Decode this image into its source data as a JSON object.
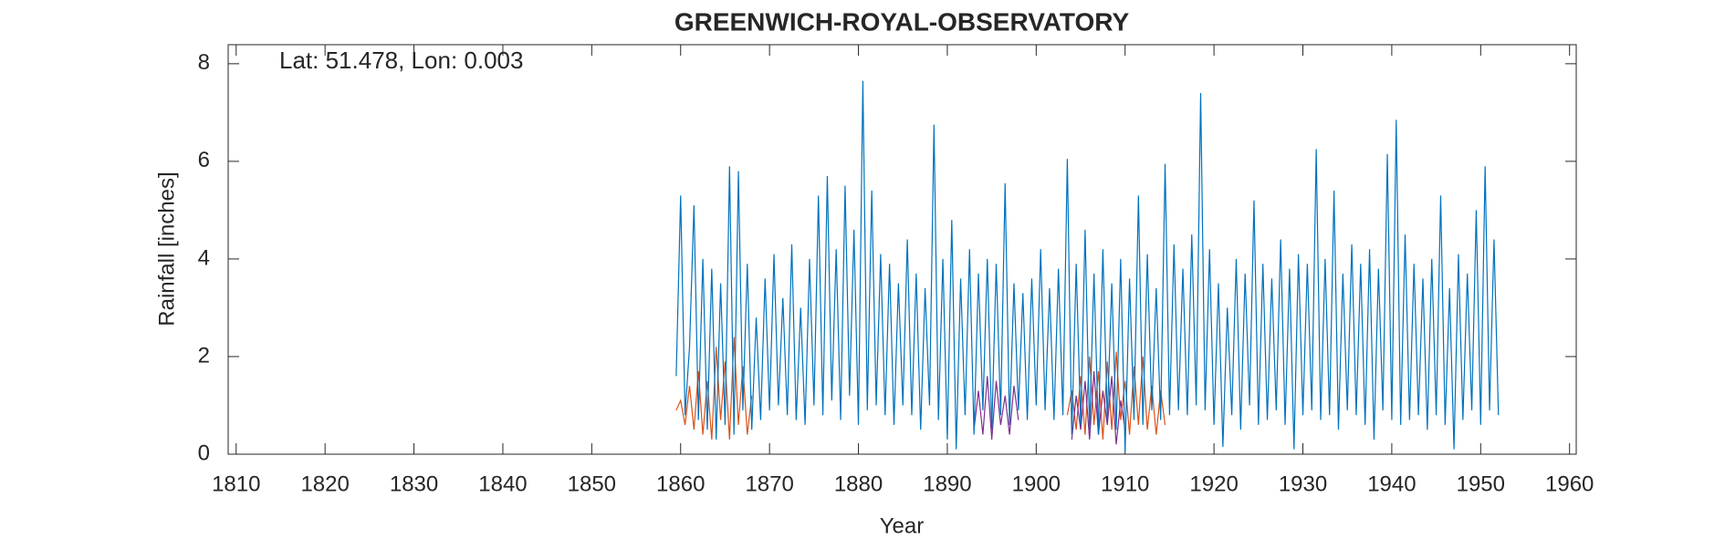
{
  "chart_data": {
    "type": "line",
    "title": "GREENWICH-ROYAL-OBSERVATORY",
    "annotation": "Lat: 51.478, Lon: 0.003",
    "x_label": "Year",
    "y_label": "Rainfall [inches]",
    "xlim": [
      1809.1,
      1960.75
    ],
    "xticks": [
      1810,
      1820,
      1830,
      1840,
      1850,
      1860,
      1870,
      1880,
      1890,
      1900,
      1910,
      1920,
      1930,
      1940,
      1950,
      1960
    ],
    "ylim": [
      0,
      8.39
    ],
    "yticks": [
      0,
      2,
      4,
      6,
      8
    ],
    "grid": false,
    "series": [
      {
        "color": "#d95319",
        "x": [
          1859.5,
          1860,
          1860.5,
          1861,
          1861.5,
          1862,
          1862.5,
          1863,
          1863.5,
          1864,
          1864.5,
          1865,
          1865.5,
          1866,
          1866.5,
          1867,
          1867.5,
          1868
        ],
        "values": [
          0.9,
          1.1,
          0.6,
          1.4,
          0.5,
          1.7,
          0.4,
          1.5,
          0.3,
          2.2,
          0.7,
          1.9,
          0.3,
          2.4,
          0.6,
          1.8,
          0.4,
          1.2
        ]
      },
      {
        "color": "#d95319",
        "x": [
          1903.5,
          1904,
          1904.5,
          1905,
          1905.5,
          1906,
          1906.5,
          1907,
          1907.5,
          1908,
          1908.5,
          1909,
          1909.5,
          1910,
          1910.5,
          1911,
          1911.5,
          1912,
          1912.5,
          1913,
          1913.5,
          1914,
          1914.5
        ],
        "values": [
          0.8,
          1.3,
          0.5,
          1.6,
          0.4,
          2.0,
          0.6,
          1.7,
          0.3,
          1.9,
          0.5,
          2.1,
          0.7,
          1.5,
          0.4,
          1.8,
          0.6,
          2.0,
          0.5,
          1.4,
          0.4,
          1.3,
          0.6
        ]
      },
      {
        "color": "#7e2f8e",
        "x": [
          1893,
          1893.5,
          1894,
          1894.5,
          1895,
          1895.5,
          1896,
          1896.5,
          1897,
          1897.5,
          1898
        ],
        "values": [
          0.5,
          1.3,
          0.4,
          1.6,
          0.3,
          1.5,
          0.6,
          1.2,
          0.4,
          1.4,
          0.7
        ]
      },
      {
        "color": "#7e2f8e",
        "x": [
          1904,
          1904.5,
          1905,
          1905.5,
          1906,
          1906.5,
          1907,
          1907.5,
          1908,
          1908.5,
          1909,
          1909.5,
          1910
        ],
        "values": [
          0.3,
          1.2,
          0.5,
          1.5,
          0.3,
          1.7,
          0.4,
          1.3,
          0.6,
          1.6,
          0.2,
          1.1,
          0.5
        ]
      },
      {
        "color": "#0072bd",
        "x": [
          1859.5,
          1860,
          1860.5,
          1861,
          1861.5,
          1862,
          1862.5,
          1863,
          1863.5,
          1864,
          1864.5,
          1865,
          1865.5,
          1866,
          1866.5,
          1867,
          1867.5,
          1868,
          1868.5,
          1869,
          1869.5,
          1870,
          1870.5,
          1871,
          1871.5,
          1872,
          1872.5,
          1873,
          1873.5,
          1874,
          1874.5,
          1875,
          1875.5,
          1876,
          1876.5,
          1877,
          1877.5,
          1878,
          1878.5,
          1879,
          1879.5,
          1880,
          1880.5,
          1881,
          1881.5,
          1882,
          1882.5,
          1883,
          1883.5,
          1884,
          1884.5,
          1885,
          1885.5,
          1886,
          1886.5,
          1887,
          1887.5,
          1888,
          1888.5,
          1889,
          1889.5,
          1890,
          1890.5,
          1891,
          1891.5,
          1892,
          1892.5,
          1893,
          1893.5,
          1894,
          1894.5,
          1895,
          1895.5,
          1896,
          1896.5,
          1897,
          1897.5,
          1898,
          1898.5,
          1899,
          1899.5,
          1900,
          1900.5,
          1901,
          1901.5,
          1902,
          1902.5,
          1903,
          1903.5,
          1904,
          1904.5,
          1905,
          1905.5,
          1906,
          1906.5,
          1907,
          1907.5,
          1908,
          1908.5,
          1909,
          1909.5,
          1910,
          1910.5,
          1911,
          1911.5,
          1912,
          1912.5,
          1913,
          1913.5,
          1914,
          1914.5,
          1915,
          1915.5,
          1916,
          1916.5,
          1917,
          1917.5,
          1918,
          1918.5,
          1919,
          1919.5,
          1920,
          1920.5,
          1921,
          1921.5,
          1922,
          1922.5,
          1923,
          1923.5,
          1924,
          1924.5,
          1925,
          1925.5,
          1926,
          1926.5,
          1927,
          1927.5,
          1928,
          1928.5,
          1929,
          1929.5,
          1930,
          1930.5,
          1931,
          1931.5,
          1932,
          1932.5,
          1933,
          1933.5,
          1934,
          1934.5,
          1935,
          1935.5,
          1936,
          1936.5,
          1937,
          1937.5,
          1938,
          1938.5,
          1939,
          1939.5,
          1940,
          1940.5,
          1941,
          1941.5,
          1942,
          1942.5,
          1943,
          1943.5,
          1944,
          1944.5,
          1945,
          1945.5,
          1946,
          1946.5,
          1947,
          1947.5,
          1948,
          1948.5,
          1949,
          1949.5,
          1950,
          1950.5,
          1951,
          1951.5,
          1952
        ],
        "values": [
          1.6,
          5.3,
          0.8,
          2.2,
          5.1,
          0.7,
          4.0,
          0.5,
          3.8,
          0.3,
          3.5,
          0.6,
          5.9,
          0.4,
          5.8,
          0.9,
          3.9,
          0.5,
          2.8,
          0.7,
          3.6,
          0.9,
          4.1,
          1.0,
          3.2,
          0.8,
          4.3,
          0.7,
          3.0,
          0.6,
          4.0,
          1.0,
          5.3,
          0.8,
          5.7,
          1.1,
          4.2,
          0.7,
          5.5,
          1.2,
          4.6,
          0.6,
          7.65,
          0.9,
          5.4,
          1.0,
          4.1,
          0.8,
          3.9,
          0.6,
          3.5,
          1.0,
          4.4,
          0.8,
          3.7,
          0.5,
          3.4,
          1.0,
          6.75,
          0.7,
          4.0,
          0.3,
          4.8,
          0.1,
          3.6,
          0.8,
          4.2,
          0.4,
          3.7,
          0.9,
          4.0,
          0.5,
          3.9,
          0.8,
          5.55,
          0.6,
          3.5,
          0.9,
          3.3,
          0.7,
          3.6,
          1.0,
          4.2,
          0.9,
          3.4,
          0.7,
          3.8,
          0.8,
          6.05,
          0.4,
          3.9,
          0.6,
          4.6,
          0.5,
          3.7,
          0.4,
          4.2,
          0.7,
          3.5,
          0.5,
          4.0,
          0.05,
          3.6,
          0.7,
          5.3,
          0.6,
          4.1,
          0.9,
          3.4,
          0.7,
          5.95,
          0.8,
          4.3,
          0.9,
          3.8,
          0.8,
          4.5,
          1.0,
          7.4,
          0.9,
          4.2,
          0.6,
          3.5,
          0.15,
          3.0,
          0.8,
          4.0,
          0.5,
          3.7,
          1.0,
          5.2,
          0.6,
          3.9,
          0.7,
          3.6,
          0.9,
          4.4,
          0.6,
          3.8,
          0.1,
          4.1,
          0.8,
          3.9,
          0.9,
          6.25,
          0.7,
          4.0,
          0.8,
          5.4,
          0.5,
          3.7,
          0.9,
          4.3,
          0.8,
          3.9,
          0.6,
          4.2,
          0.3,
          3.8,
          0.9,
          6.15,
          0.7,
          6.85,
          0.6,
          4.5,
          0.7,
          3.9,
          0.8,
          3.6,
          0.5,
          4.0,
          0.8,
          5.3,
          0.6,
          3.4,
          0.1,
          4.1,
          0.7,
          3.7,
          0.9,
          5.0,
          0.6,
          5.9,
          0.9,
          4.4,
          0.8
        ]
      }
    ]
  }
}
